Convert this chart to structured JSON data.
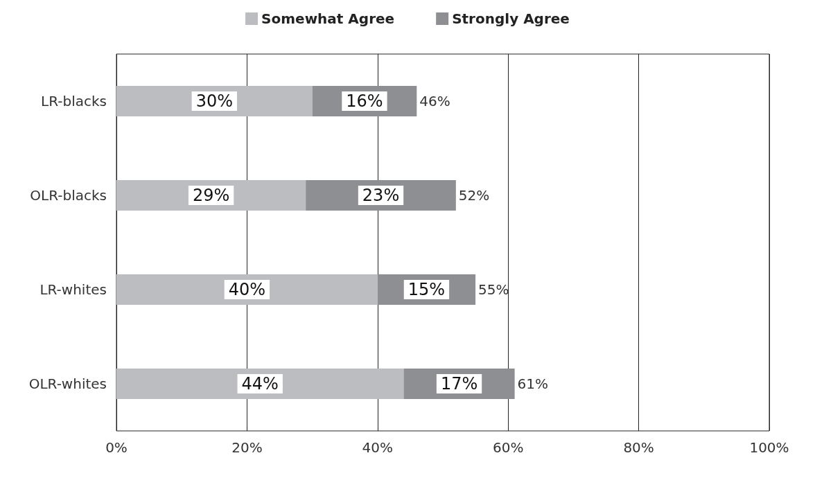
{
  "chart_data": {
    "type": "bar",
    "orientation": "horizontal",
    "stacked": true,
    "categories": [
      "LR-blacks",
      "OLR-blacks",
      "LR-whites",
      "OLR-whites"
    ],
    "series": [
      {
        "name": "Somewhat Agree",
        "color": "#bcbdc0",
        "values": [
          30,
          29,
          40,
          44
        ],
        "value_labels": [
          "30%",
          "29%",
          "40%",
          "44%"
        ]
      },
      {
        "name": "Strongly Agree",
        "color": "#8e8f92",
        "values": [
          16,
          23,
          15,
          17
        ],
        "value_labels": [
          "16%",
          "23%",
          "15%",
          "17%"
        ]
      }
    ],
    "totals": [
      "46%",
      "52%",
      "55%",
      "61%"
    ],
    "xlim": [
      0,
      100
    ],
    "xticks": [
      {
        "value": 0,
        "label": "0%"
      },
      {
        "value": 20,
        "label": "20%"
      },
      {
        "value": 40,
        "label": "40%"
      },
      {
        "value": 60,
        "label": "60%"
      },
      {
        "value": 80,
        "label": "80%"
      },
      {
        "value": 100,
        "label": "100%"
      }
    ],
    "grid": "x",
    "legend": "top"
  }
}
